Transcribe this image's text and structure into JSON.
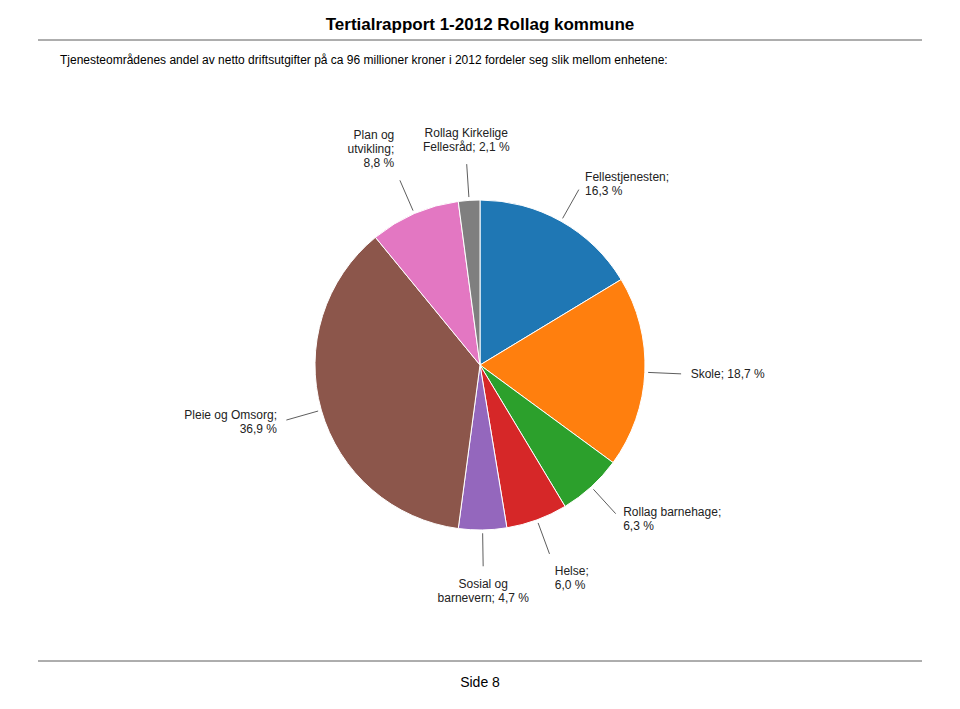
{
  "chart_data": {
    "type": "pie",
    "title": "Tertialrapport 1-2012  Rollag kommune",
    "subtitle": "Tjenesteområdenes andel av netto driftsutgifter på ca 96 millioner kroner i 2012 fordeler seg slik mellom enhetene:",
    "annotations": [
      "Side 8"
    ],
    "values": [
      16.3,
      18.7,
      6.3,
      6.0,
      4.7,
      36.9,
      8.8,
      2.1
    ],
    "value_labels": [
      "Fellestjenesten;\n16,3 %",
      "Skole; 18,7 %",
      "Rollag barnehage;\n6,3 %",
      "Helse;\n6,0 %",
      "Sosial og\nbarnevern; 4,7 %",
      "Pleie og Omsorg;\n36,9 %",
      "Plan og\nutvikling;\n8,8 %",
      "Rollag Kirkelige\nFellesråd; 2,1 %"
    ],
    "data_labels": true
  }
}
